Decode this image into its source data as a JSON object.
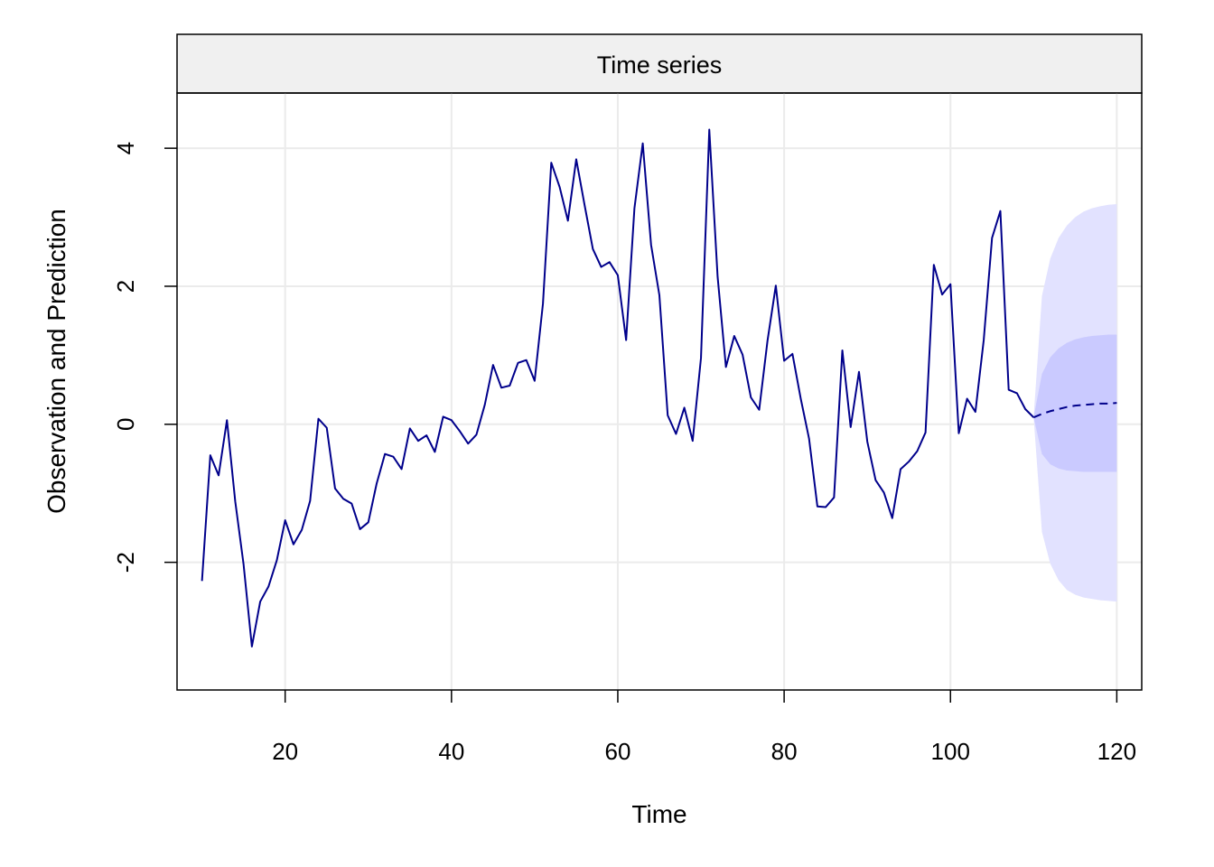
{
  "chart_data": {
    "type": "line",
    "title": "Time series",
    "xlabel": "Time",
    "ylabel": "Observation and Prediction",
    "xlim": [
      7,
      123
    ],
    "ylim": [
      -3.85,
      4.8
    ],
    "xticks": [
      20,
      40,
      60,
      80,
      100,
      120
    ],
    "yticks": [
      -2,
      0,
      2,
      4
    ],
    "grid": true,
    "colors": {
      "observed": "#00008B",
      "forecast": "#00008B",
      "band_outer": "#E2E2FF",
      "band_inner": "#CACAFF",
      "panel_header": "#F0F0F0",
      "grid": "#EBEBEB"
    },
    "series": [
      {
        "style": "solid",
        "x": [
          10,
          11,
          12,
          13,
          14,
          15,
          16,
          17,
          18,
          19,
          20,
          21,
          22,
          23,
          24,
          25,
          26,
          27,
          28,
          29,
          30,
          31,
          32,
          33,
          34,
          35,
          36,
          37,
          38,
          39,
          40,
          41,
          42,
          43,
          44,
          45,
          46,
          47,
          48,
          49,
          50,
          51,
          52,
          53,
          54,
          55,
          56,
          57,
          58,
          59,
          60,
          61,
          62,
          63,
          64,
          65,
          66,
          67,
          68,
          69,
          70,
          71,
          72,
          73,
          74,
          75,
          76,
          77,
          78,
          79,
          80,
          81,
          82,
          83,
          84,
          85,
          86,
          87,
          88,
          89,
          90,
          91,
          92,
          93,
          94,
          95,
          96,
          97,
          98,
          99,
          100,
          101,
          102,
          103,
          104,
          105,
          106,
          107,
          108,
          109,
          110
        ],
        "y": [
          -2.27,
          -0.45,
          -0.74,
          0.06,
          -1.12,
          -2.03,
          -3.22,
          -2.57,
          -2.35,
          -1.97,
          -1.39,
          -1.74,
          -1.53,
          -1.11,
          0.08,
          -0.05,
          -0.93,
          -1.08,
          -1.15,
          -1.52,
          -1.42,
          -0.86,
          -0.43,
          -0.47,
          -0.65,
          -0.06,
          -0.24,
          -0.16,
          -0.4,
          0.11,
          0.06,
          -0.1,
          -0.28,
          -0.15,
          0.28,
          0.86,
          0.53,
          0.56,
          0.89,
          0.93,
          0.63,
          1.75,
          3.79,
          3.44,
          2.95,
          3.84,
          3.18,
          2.54,
          2.28,
          2.35,
          2.16,
          1.22,
          3.13,
          4.07,
          2.6,
          1.87,
          0.13,
          -0.14,
          0.24,
          -0.24,
          0.96,
          4.27,
          2.14,
          0.83,
          1.28,
          1.01,
          0.39,
          0.21,
          1.21,
          2.01,
          0.92,
          1.02,
          0.37,
          -0.21,
          -1.19,
          -1.2,
          -1.06,
          1.07,
          -0.04,
          0.76,
          -0.25,
          -0.81,
          -0.99,
          -1.36,
          -0.65,
          -0.54,
          -0.39,
          -0.12,
          2.31,
          1.88,
          2.03,
          -0.13,
          0.37,
          0.18,
          1.22,
          2.7,
          3.09,
          0.5,
          0.45,
          0.22,
          0.1
        ]
      },
      {
        "style": "dashed",
        "x": [
          110,
          111,
          112,
          113,
          114,
          115,
          116,
          117,
          118,
          119,
          120
        ],
        "y": [
          0.1,
          0.15,
          0.19,
          0.22,
          0.25,
          0.27,
          0.28,
          0.29,
          0.3,
          0.3,
          0.31
        ]
      }
    ],
    "bands": [
      {
        "level": "outer",
        "x": [
          110,
          111,
          112,
          113,
          114,
          115,
          116,
          117,
          118,
          119,
          120
        ],
        "lower": [
          0.1,
          -1.56,
          -2.02,
          -2.26,
          -2.4,
          -2.47,
          -2.51,
          -2.53,
          -2.55,
          -2.56,
          -2.57
        ],
        "upper": [
          0.1,
          1.86,
          2.4,
          2.7,
          2.88,
          3.0,
          3.08,
          3.13,
          3.16,
          3.18,
          3.19
        ]
      },
      {
        "level": "inner",
        "x": [
          110,
          111,
          112,
          113,
          114,
          115,
          116,
          117,
          118,
          119,
          120
        ],
        "lower": [
          0.1,
          -0.43,
          -0.58,
          -0.64,
          -0.67,
          -0.68,
          -0.69,
          -0.69,
          -0.69,
          -0.69,
          -0.69
        ],
        "upper": [
          0.1,
          0.73,
          0.97,
          1.1,
          1.18,
          1.23,
          1.26,
          1.28,
          1.29,
          1.3,
          1.3
        ]
      }
    ]
  }
}
